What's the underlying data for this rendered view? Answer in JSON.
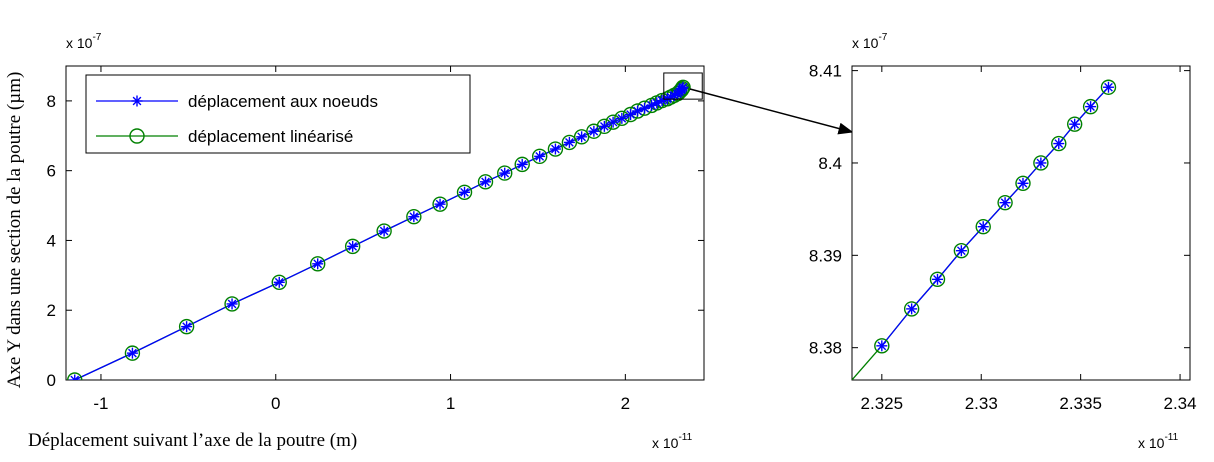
{
  "chart_data": [
    {
      "type": "line",
      "title": "",
      "xlabel": "Déplacement suivant l’axe de la poutre (m)",
      "ylabel": "Axe Y dans une section de la poutre (µm)",
      "x_multiplier": {
        "base": "x 10",
        "exponent": "-11"
      },
      "y_multiplier": {
        "base": "x 10",
        "exponent": "-7"
      },
      "xlim": [
        -1.2,
        2.45
      ],
      "ylim": [
        0,
        9
      ],
      "x_ticks": [
        "-1",
        "0",
        "1",
        "2"
      ],
      "x_tick_values": [
        -1,
        0,
        1,
        2
      ],
      "y_ticks": [
        "0",
        "2",
        "4",
        "6",
        "8"
      ],
      "y_tick_values": [
        0,
        2,
        4,
        6,
        8
      ],
      "legend_position": "top-left",
      "series": [
        {
          "name": "déplacement aux noeuds",
          "color": "#0000ff",
          "marker": "asterisk",
          "x": [
            -1.15,
            -0.82,
            -0.51,
            -0.25,
            0.02,
            0.24,
            0.44,
            0.62,
            0.79,
            0.94,
            1.08,
            1.2,
            1.31,
            1.41,
            1.51,
            1.6,
            1.68,
            1.75,
            1.82,
            1.88,
            1.93,
            1.98,
            2.03,
            2.07,
            2.11,
            2.15,
            2.18,
            2.21,
            2.24,
            2.26,
            2.28,
            2.3,
            2.31,
            2.32,
            2.325,
            2.33
          ],
          "y": [
            0.0,
            0.77,
            1.53,
            2.18,
            2.8,
            3.33,
            3.83,
            4.27,
            4.68,
            5.04,
            5.38,
            5.68,
            5.93,
            6.18,
            6.41,
            6.62,
            6.81,
            6.97,
            7.13,
            7.27,
            7.39,
            7.5,
            7.61,
            7.71,
            7.79,
            7.87,
            7.94,
            8.01,
            8.06,
            8.11,
            8.16,
            8.21,
            8.26,
            8.31,
            8.35,
            8.39
          ]
        },
        {
          "name": "déplacement linéarisé",
          "color": "#008000",
          "marker": "circle",
          "x": [
            -1.15,
            -0.82,
            -0.51,
            -0.25,
            0.02,
            0.24,
            0.44,
            0.62,
            0.79,
            0.94,
            1.08,
            1.2,
            1.31,
            1.41,
            1.51,
            1.6,
            1.68,
            1.75,
            1.82,
            1.88,
            1.93,
            1.98,
            2.03,
            2.07,
            2.11,
            2.15,
            2.18,
            2.21,
            2.24,
            2.26,
            2.28,
            2.3,
            2.31,
            2.32,
            2.325,
            2.33
          ],
          "y": [
            0.0,
            0.77,
            1.53,
            2.18,
            2.8,
            3.33,
            3.83,
            4.27,
            4.68,
            5.04,
            5.38,
            5.68,
            5.93,
            6.18,
            6.41,
            6.62,
            6.81,
            6.97,
            7.13,
            7.27,
            7.39,
            7.5,
            7.61,
            7.71,
            7.79,
            7.87,
            7.94,
            8.01,
            8.06,
            8.11,
            8.16,
            8.21,
            8.26,
            8.31,
            8.35,
            8.39
          ]
        }
      ],
      "zoom_box": {
        "x": [
          2.22,
          2.44
        ],
        "y": [
          8.05,
          8.8
        ]
      }
    },
    {
      "type": "line",
      "title": "",
      "xlabel": "",
      "ylabel": "",
      "x_multiplier": {
        "base": "x 10",
        "exponent": "-11"
      },
      "y_multiplier": {
        "base": "x 10",
        "exponent": "-7"
      },
      "xlim": [
        2.3235,
        2.3405
      ],
      "ylim": [
        8.3765,
        8.4105
      ],
      "x_ticks": [
        "2.325",
        "2.33",
        "2.335",
        "2.34"
      ],
      "x_tick_values": [
        2.325,
        2.33,
        2.335,
        2.34
      ],
      "y_ticks": [
        "8.38",
        "8.39",
        "8.4",
        "8.41"
      ],
      "y_tick_values": [
        8.38,
        8.39,
        8.4,
        8.41
      ],
      "series": [
        {
          "name": "déplacement aux noeuds",
          "color": "#0000ff",
          "marker": "asterisk",
          "x": [
            2.325,
            2.3265,
            2.3278,
            2.329,
            2.3301,
            2.3312,
            2.3321,
            2.333,
            2.3339,
            2.3347,
            2.3355,
            2.3364
          ],
          "y": [
            8.3802,
            8.3842,
            8.3874,
            8.3905,
            8.3931,
            8.3957,
            8.3978,
            8.4,
            8.4021,
            8.4042,
            8.4061,
            8.4082
          ]
        },
        {
          "name": "déplacement linéarisé",
          "color": "#008000",
          "marker": "circle",
          "x": [
            2.325,
            2.3265,
            2.3278,
            2.329,
            2.3301,
            2.3312,
            2.3321,
            2.333,
            2.3339,
            2.3347,
            2.3355,
            2.3364
          ],
          "y": [
            8.3802,
            8.3842,
            8.3874,
            8.3905,
            8.3931,
            8.3957,
            8.3978,
            8.4,
            8.4021,
            8.4042,
            8.4061,
            8.4082
          ]
        }
      ]
    }
  ],
  "colors": {
    "node_series": "#0000ff",
    "linear_series": "#008000",
    "axes": "#000000"
  }
}
